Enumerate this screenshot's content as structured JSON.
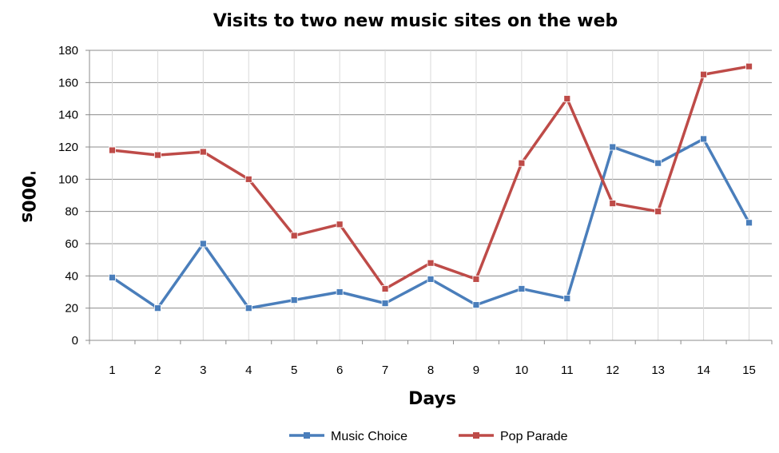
{
  "chart_data": {
    "type": "line",
    "title": "Visits to two new music sites on the web",
    "xlabel": "Days",
    "ylabel": "'000s",
    "ylim": [
      0,
      180
    ],
    "yticks": [
      0,
      20,
      40,
      60,
      80,
      100,
      120,
      140,
      160,
      180
    ],
    "categories": [
      "1",
      "2",
      "3",
      "4",
      "5",
      "6",
      "7",
      "8",
      "9",
      "10",
      "11",
      "12",
      "13",
      "14",
      "15"
    ],
    "grid": "horizontal and vertical",
    "legend_position": "bottom",
    "series": [
      {
        "name": "Music Choice",
        "color": "#4a7ebb",
        "values": [
          39,
          20,
          60,
          20,
          25,
          30,
          23,
          38,
          22,
          32,
          26,
          120,
          110,
          125,
          73
        ]
      },
      {
        "name": "Pop Parade",
        "color": "#be4b48",
        "values": [
          118,
          115,
          117,
          100,
          65,
          72,
          32,
          48,
          38,
          110,
          150,
          85,
          80,
          165,
          170
        ]
      }
    ]
  }
}
